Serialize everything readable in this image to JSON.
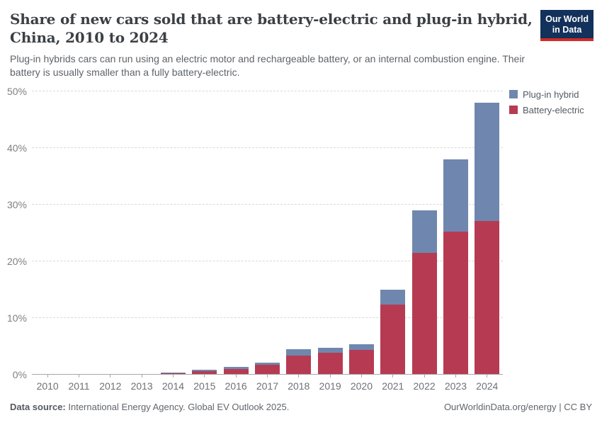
{
  "header": {
    "title_lines": [
      "Share of new cars sold that are battery-electric and plug-in hybrid,",
      "China, 2010 to 2024"
    ],
    "subtitle": "Plug-in hybrids cars can run using an electric motor and rechargeable battery, or an internal combustion engine. Their battery is usually smaller than a fully battery-electric.",
    "logo": {
      "line1": "Our World",
      "line2": "in Data",
      "bg_color": "#12315b",
      "accent_color": "#cf2b27"
    }
  },
  "chart_data": {
    "type": "bar",
    "stacked": true,
    "title": "Share of new cars sold that are battery-electric and plug-in hybrid, China, 2010 to 2024",
    "categories": [
      "2010",
      "2011",
      "2012",
      "2013",
      "2014",
      "2015",
      "2016",
      "2017",
      "2018",
      "2019",
      "2020",
      "2021",
      "2022",
      "2023",
      "2024"
    ],
    "series": [
      {
        "name": "Plug-in hybrid",
        "color": "#6f87ae",
        "values": [
          0.0,
          0.01,
          0.02,
          0.02,
          0.12,
          0.25,
          0.4,
          0.4,
          1.1,
          0.9,
          1.0,
          2.6,
          7.5,
          12.8,
          20.9
        ]
      },
      {
        "name": "Battery-electric",
        "color": "#b63b52",
        "values": [
          0.01,
          0.06,
          0.08,
          0.08,
          0.25,
          0.6,
          1.0,
          1.7,
          3.4,
          3.9,
          4.4,
          12.4,
          21.5,
          25.2,
          27.1
        ]
      }
    ],
    "stack_order_bottom_to_top": [
      "Battery-electric",
      "Plug-in hybrid"
    ],
    "xlabel": "",
    "ylabel": "",
    "ylim": [
      0,
      50
    ],
    "yticks": [
      "0%",
      "10%",
      "20%",
      "30%",
      "40%",
      "50%"
    ],
    "ytick_values": [
      0,
      10,
      20,
      30,
      40,
      50
    ],
    "grid": "horizontal-dashed",
    "legend_position": "top-right"
  },
  "footer": {
    "source_label": "Data source:",
    "source_text": " International Energy Agency. Global EV Outlook 2025.",
    "credit": "OurWorldinData.org/energy | CC BY"
  }
}
